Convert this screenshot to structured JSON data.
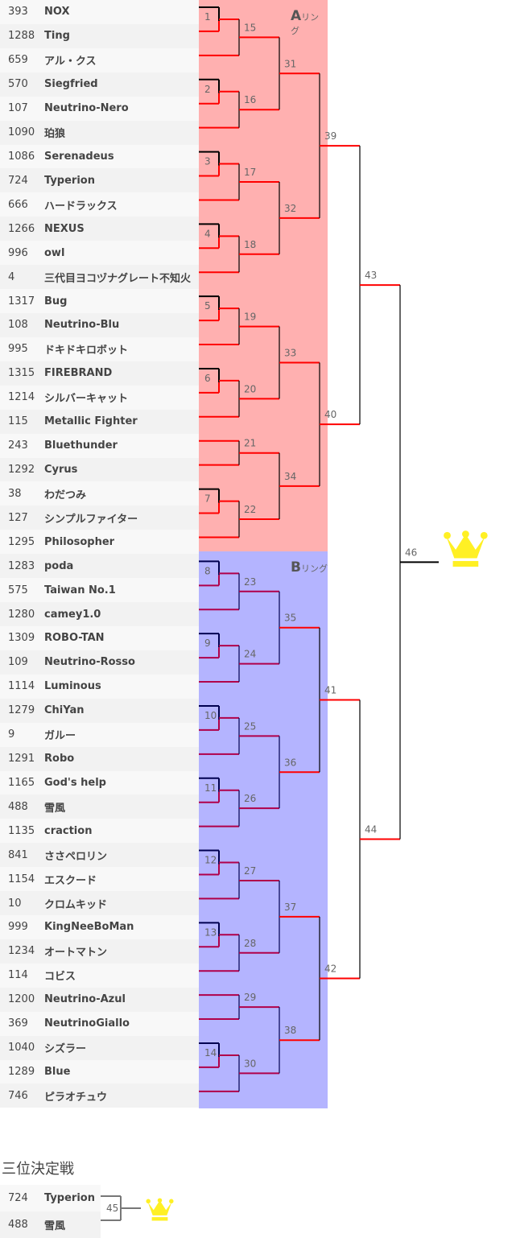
{
  "rings": {
    "a_letter": "A",
    "a_suffix": "リング",
    "b_letter": "B",
    "b_suffix": "リング"
  },
  "colors": {
    "ring_a_bg": "#ffb0b0",
    "ring_b_bg": "#b4b4ff",
    "line_a": "#ff0000",
    "line_b": "#b0004a",
    "crown": "#fff024"
  },
  "entries": [
    {
      "num": "393",
      "name": "NOX"
    },
    {
      "num": "1288",
      "name": "Ting"
    },
    {
      "num": "659",
      "name": "アル・クス"
    },
    {
      "num": "570",
      "name": "Siegfried"
    },
    {
      "num": "107",
      "name": "Neutrino-Nero"
    },
    {
      "num": "1090",
      "name": "珀狼"
    },
    {
      "num": "1086",
      "name": "Serenadeus"
    },
    {
      "num": "724",
      "name": "Typerion"
    },
    {
      "num": "666",
      "name": "ハードラックス"
    },
    {
      "num": "1266",
      "name": "NEXUS"
    },
    {
      "num": "996",
      "name": "owl"
    },
    {
      "num": "4",
      "name": "三代目ヨコヅナグレート不知火"
    },
    {
      "num": "1317",
      "name": "Bug"
    },
    {
      "num": "108",
      "name": "Neutrino-Blu"
    },
    {
      "num": "995",
      "name": "ドキドキロボット"
    },
    {
      "num": "1315",
      "name": "FIREBRAND"
    },
    {
      "num": "1214",
      "name": "シルバーキャット"
    },
    {
      "num": "115",
      "name": "Metallic Fighter"
    },
    {
      "num": "243",
      "name": "Bluethunder"
    },
    {
      "num": "1292",
      "name": "Cyrus"
    },
    {
      "num": "38",
      "name": "わだつみ"
    },
    {
      "num": "127",
      "name": "シンプルファイター"
    },
    {
      "num": "1295",
      "name": "Philosopher"
    },
    {
      "num": "1283",
      "name": "poda"
    },
    {
      "num": "575",
      "name": "Taiwan No.1"
    },
    {
      "num": "1280",
      "name": "camey1.0"
    },
    {
      "num": "1309",
      "name": "ROBO-TAN"
    },
    {
      "num": "109",
      "name": "Neutrino-Rosso"
    },
    {
      "num": "1114",
      "name": "Luminous"
    },
    {
      "num": "1279",
      "name": "ChiYan"
    },
    {
      "num": "9",
      "name": "ガルー"
    },
    {
      "num": "1291",
      "name": "Robo"
    },
    {
      "num": "1165",
      "name": "God's help"
    },
    {
      "num": "488",
      "name": "雪風"
    },
    {
      "num": "1135",
      "name": "craction"
    },
    {
      "num": "841",
      "name": "ささペロリン"
    },
    {
      "num": "1154",
      "name": "エスクード"
    },
    {
      "num": "10",
      "name": "クロムキッド"
    },
    {
      "num": "999",
      "name": "KingNeeBoMan"
    },
    {
      "num": "1234",
      "name": "オートマトン"
    },
    {
      "num": "114",
      "name": "コビス"
    },
    {
      "num": "1200",
      "name": "Neutrino-Azul"
    },
    {
      "num": "369",
      "name": "NeutrinoGiallo"
    },
    {
      "num": "1040",
      "name": "シズラー"
    },
    {
      "num": "1289",
      "name": "Blue"
    },
    {
      "num": "746",
      "name": "ピラオチュウ"
    }
  ],
  "matches": [
    {
      "no": "1",
      "in": [
        "r0",
        "r1"
      ]
    },
    {
      "no": "15",
      "in": [
        "m1",
        "r2"
      ]
    },
    {
      "no": "2",
      "in": [
        "r3",
        "r4"
      ]
    },
    {
      "no": "16",
      "in": [
        "m2",
        "r5"
      ]
    },
    {
      "no": "31",
      "in": [
        "m15",
        "m16"
      ]
    },
    {
      "no": "3",
      "in": [
        "r6",
        "r7"
      ]
    },
    {
      "no": "17",
      "in": [
        "m3",
        "r8"
      ]
    },
    {
      "no": "4",
      "in": [
        "r9",
        "r10"
      ]
    },
    {
      "no": "18",
      "in": [
        "m4",
        "r11"
      ]
    },
    {
      "no": "32",
      "in": [
        "m17",
        "m18"
      ]
    },
    {
      "no": "39",
      "in": [
        "m31",
        "m32"
      ]
    },
    {
      "no": "5",
      "in": [
        "r12",
        "r13"
      ]
    },
    {
      "no": "19",
      "in": [
        "m5",
        "r14"
      ]
    },
    {
      "no": "6",
      "in": [
        "r15",
        "r16"
      ]
    },
    {
      "no": "20",
      "in": [
        "m6",
        "r17"
      ]
    },
    {
      "no": "33",
      "in": [
        "m19",
        "m20"
      ]
    },
    {
      "no": "21",
      "in": [
        "r18",
        "r19"
      ]
    },
    {
      "no": "7",
      "in": [
        "r20",
        "r21"
      ]
    },
    {
      "no": "22",
      "in": [
        "m7",
        "r22"
      ]
    },
    {
      "no": "34",
      "in": [
        "m21",
        "m22"
      ]
    },
    {
      "no": "40",
      "in": [
        "m33",
        "m34"
      ]
    },
    {
      "no": "43",
      "in": [
        "m39",
        "m40"
      ]
    },
    {
      "no": "8",
      "in": [
        "r23",
        "r24"
      ]
    },
    {
      "no": "23",
      "in": [
        "m8",
        "r25"
      ]
    },
    {
      "no": "9",
      "in": [
        "r26",
        "r27"
      ]
    },
    {
      "no": "24",
      "in": [
        "m9",
        "r28"
      ]
    },
    {
      "no": "35",
      "in": [
        "m23",
        "m24"
      ]
    },
    {
      "no": "10",
      "in": [
        "r29",
        "r30"
      ]
    },
    {
      "no": "25",
      "in": [
        "m10",
        "r31"
      ]
    },
    {
      "no": "11",
      "in": [
        "r32",
        "r33"
      ]
    },
    {
      "no": "26",
      "in": [
        "m11",
        "r34"
      ]
    },
    {
      "no": "36",
      "in": [
        "m25",
        "m26"
      ]
    },
    {
      "no": "41",
      "in": [
        "m35",
        "m36"
      ]
    },
    {
      "no": "12",
      "in": [
        "r35",
        "r36"
      ]
    },
    {
      "no": "27",
      "in": [
        "m12",
        "r37"
      ]
    },
    {
      "no": "13",
      "in": [
        "r38",
        "r39"
      ]
    },
    {
      "no": "28",
      "in": [
        "m13",
        "r40"
      ]
    },
    {
      "no": "37",
      "in": [
        "m27",
        "m28"
      ]
    },
    {
      "no": "29",
      "in": [
        "r41",
        "r42"
      ]
    },
    {
      "no": "14",
      "in": [
        "r43",
        "r44"
      ]
    },
    {
      "no": "30",
      "in": [
        "m14",
        "r45"
      ]
    },
    {
      "no": "38",
      "in": [
        "m29",
        "m30"
      ]
    },
    {
      "no": "42",
      "in": [
        "m37",
        "m38"
      ]
    },
    {
      "no": "44",
      "in": [
        "m41",
        "m42"
      ]
    },
    {
      "no": "46",
      "in": [
        "m43",
        "m44"
      ]
    }
  ],
  "final_icon": "crown-icon",
  "third_place": {
    "title": "三位決定戦",
    "match_no": "45",
    "entries": [
      {
        "num": "724",
        "name": "Typerion"
      },
      {
        "num": "488",
        "name": "雪風"
      }
    ],
    "icon": "crown-icon"
  }
}
